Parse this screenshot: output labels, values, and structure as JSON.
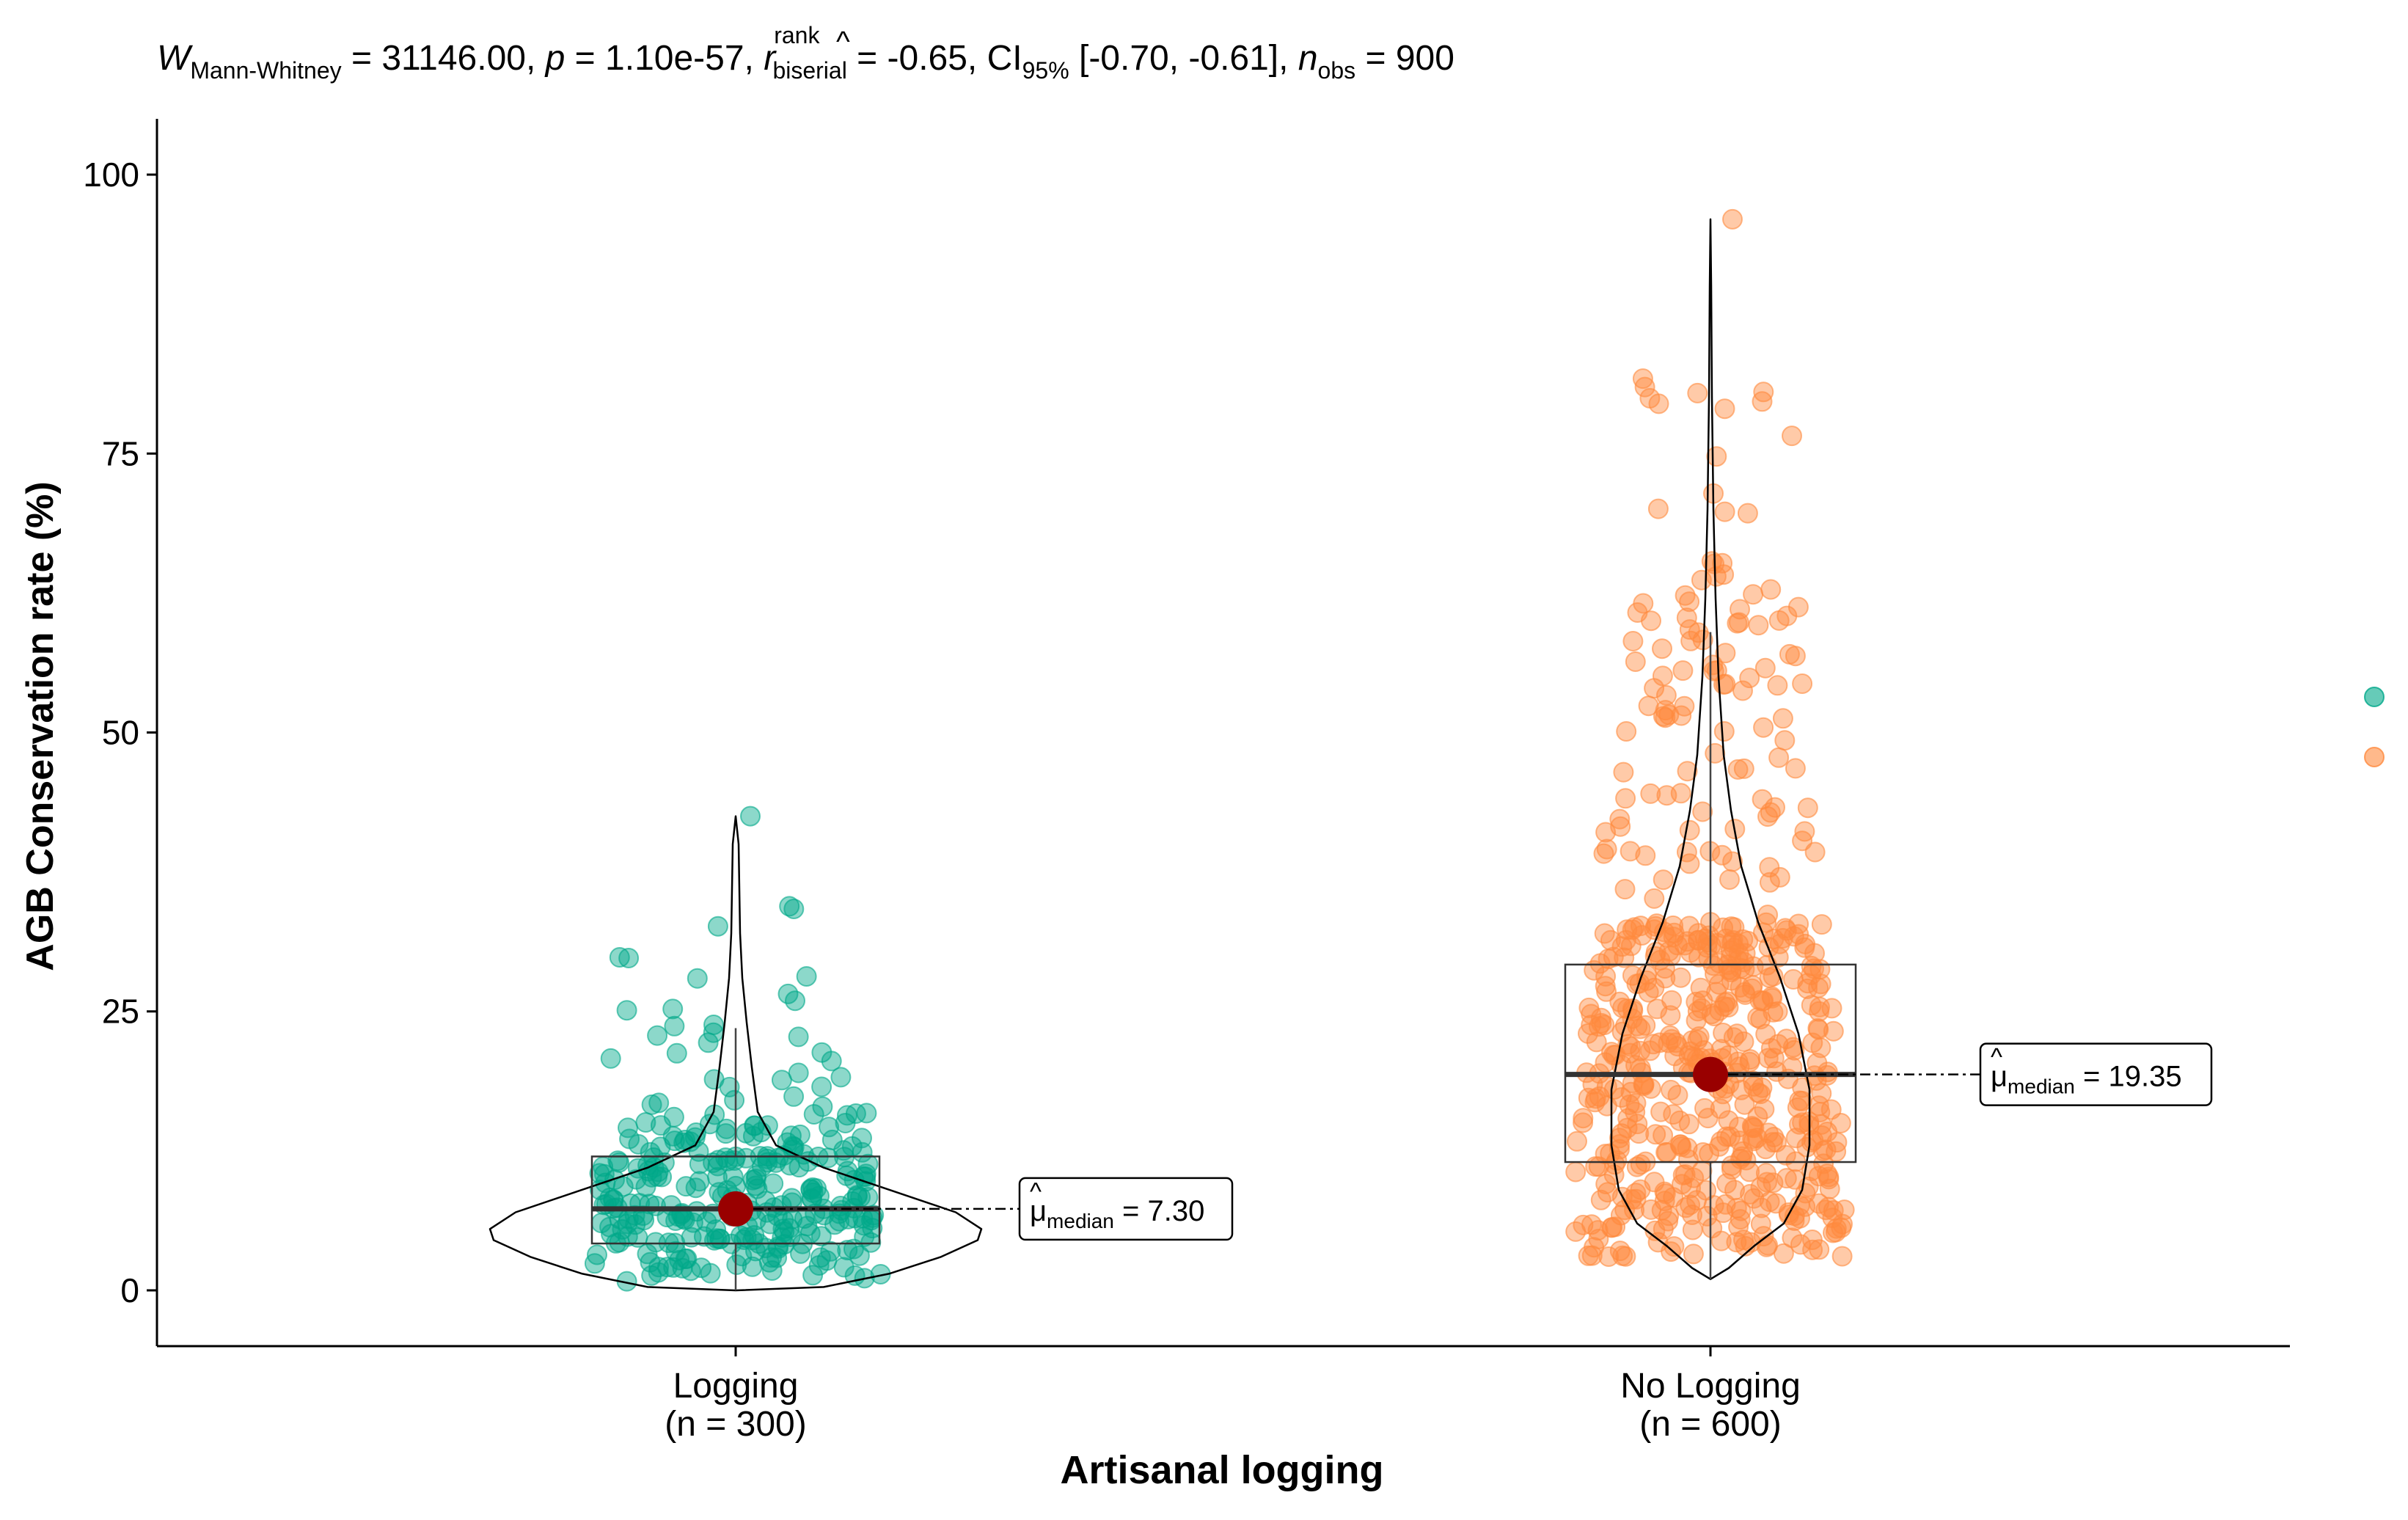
{
  "chart_data": {
    "type": "violin-box-scatter",
    "subtitle": {
      "w_symbol": "W",
      "w_sub": "Mann-Whitney",
      "w_value": " = 31146.00, ",
      "p_symbol": "p",
      "p_value": " = 1.10e-57, ",
      "r_symbol": "r",
      "r_hat": "^",
      "r_sup": "rank",
      "r_sub": "biserial",
      "r_value": " = -0.65, CI",
      "ci_sub": "95%",
      "ci_value": " [-0.70, -0.61], ",
      "n_symbol": "n",
      "n_sub": "obs",
      "n_value": " = 900"
    },
    "xlabel": "Artisanal logging",
    "ylabel": "AGB Conservation rate (%)",
    "ylim": [
      -5,
      105
    ],
    "yticks": [
      "0",
      "25",
      "50",
      "75",
      "100"
    ],
    "grid": false,
    "legend_position": "right (no labels)",
    "groups": [
      {
        "name": "Logging",
        "n_label": "(n = 300)",
        "color": "#00A889",
        "n": 300,
        "median": 7.3,
        "median_label_prefix": "μ",
        "median_label_hat": "^",
        "median_label_sub": "median",
        "median_label_value": " = 7.30",
        "box": {
          "min": 0,
          "q1": 4.2,
          "median": 7.3,
          "q3": 12.0,
          "max": 23.5
        },
        "max_value": 42.5
      },
      {
        "name": "No Logging",
        "n_label": "(n = 600)",
        "color": "#FF8A3D",
        "n": 600,
        "median": 19.35,
        "median_label_prefix": "μ",
        "median_label_hat": "^",
        "median_label_sub": "median",
        "median_label_value": " = 19.35",
        "box": {
          "min": 1.0,
          "q1": 11.5,
          "median": 19.35,
          "q3": 29.2,
          "max": 59.0
        },
        "max_value": 96.0
      }
    ],
    "median_point_color": "#990000",
    "legend_colors": [
      "#00A889",
      "#FF8A3D"
    ]
  }
}
